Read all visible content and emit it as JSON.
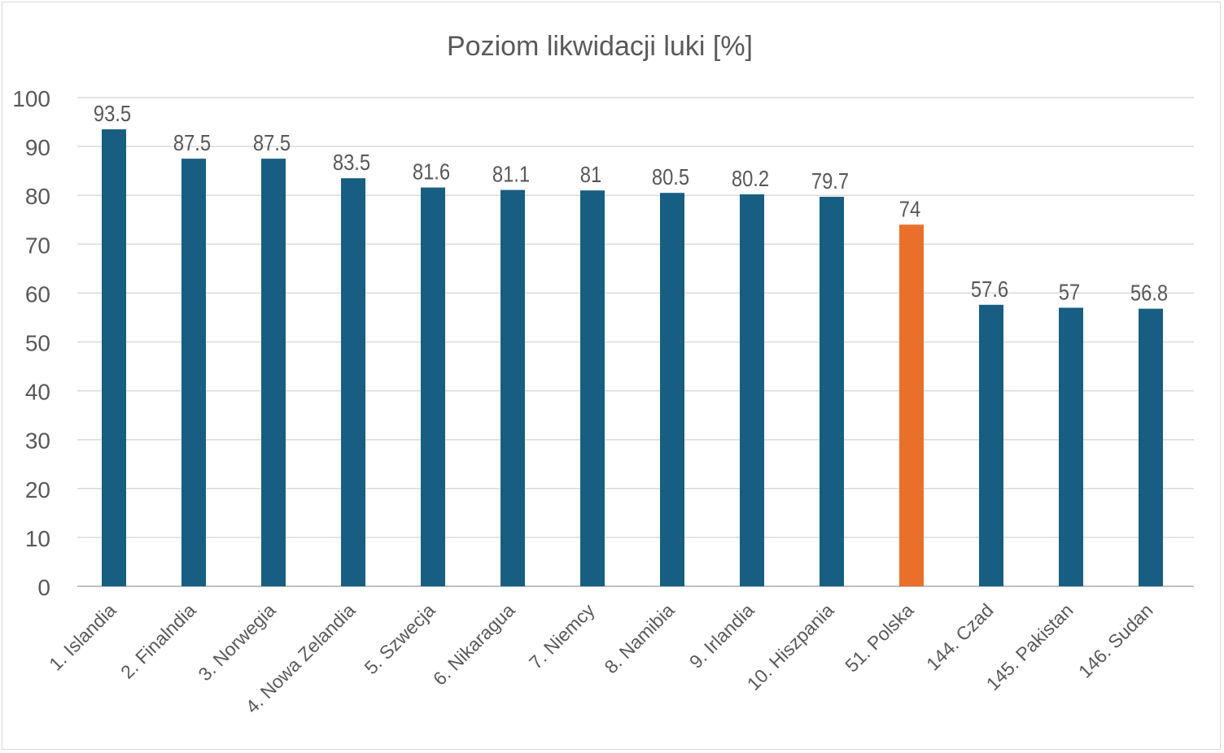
{
  "chart_data": {
    "type": "bar",
    "title": "Poziom likwidacji luki [%]",
    "xlabel": "",
    "ylabel": "",
    "ylim": [
      0,
      100
    ],
    "yticks": [
      0,
      10,
      20,
      30,
      40,
      50,
      60,
      70,
      80,
      90,
      100
    ],
    "grid": true,
    "legend": "none",
    "categories": [
      "1. Islandia",
      "2. Finalndia",
      "3. Norwegia",
      "4. Nowa Zelandia",
      "5. Szwecja",
      "6. Nikaragua",
      "7. Niemcy",
      "8. Namibia",
      "9. Irlandia",
      "10. Hiszpania",
      "51. Polska",
      "144. Czad",
      "145. Pakistan",
      "146. Sudan"
    ],
    "values": [
      93.5,
      87.5,
      87.5,
      83.5,
      81.6,
      81.1,
      81,
      80.5,
      80.2,
      79.7,
      74,
      57.6,
      57,
      56.8
    ],
    "data_labels": [
      "93.5",
      "87.5",
      "87.5",
      "83.5",
      "81.6",
      "81.1",
      "81",
      "80.5",
      "80.2",
      "79.7",
      "74",
      "57.6",
      "57",
      "56.8"
    ],
    "colors": {
      "default": "#175e82",
      "highlight": "#e8702a"
    },
    "highlight_category": "51. Polska"
  }
}
